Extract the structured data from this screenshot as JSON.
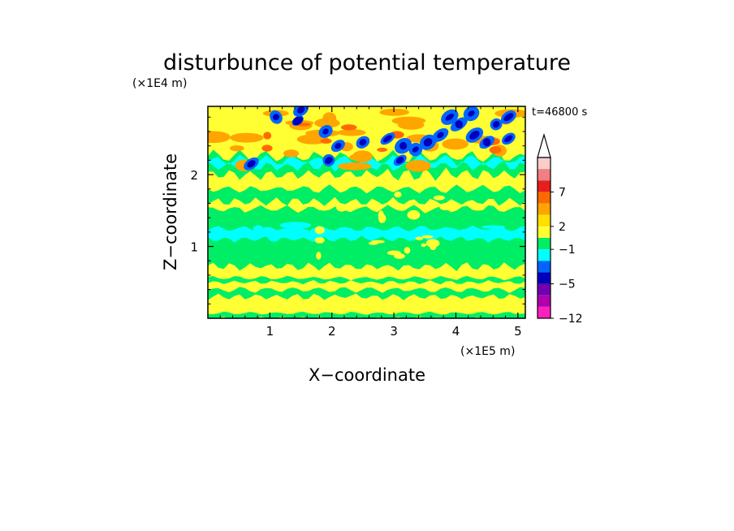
{
  "chart_data": {
    "type": "heatmap",
    "title": "disturbunce of potential temperature",
    "xlabel": "X−coordinate",
    "ylabel": "Z−coordinate",
    "x_unit": "(×1E5 m)",
    "y_unit": "(×1E4 m)",
    "time_label": "t=46800 s",
    "xlim": [
      0,
      5.12
    ],
    "ylim": [
      0,
      2.95
    ],
    "x_ticks": [
      "1",
      "2",
      "3",
      "4",
      "5"
    ],
    "y_ticks": [
      "1",
      "2"
    ],
    "colorbar_labels": [
      "7",
      "2",
      "−1",
      "−5",
      "−12"
    ],
    "colorbar_colors": [
      "#ffcccc",
      "#f08080",
      "#e81e1e",
      "#ff6a00",
      "#ffa500",
      "#ffe000",
      "#ffff33",
      "#00ee66",
      "#00ffff",
      "#0066ff",
      "#0000bb",
      "#7000b0",
      "#b000b0",
      "#ff20c0"
    ],
    "level_colors": {
      "very_neg": "#0000bb",
      "neg": "#0066ff",
      "slight_neg": "#00ffff",
      "near_zero": "#00ee66",
      "slight_pos": "#ffff33",
      "pos": "#ffe000",
      "more_pos": "#ffa500",
      "high": "#ff6a00"
    },
    "grid": false
  }
}
